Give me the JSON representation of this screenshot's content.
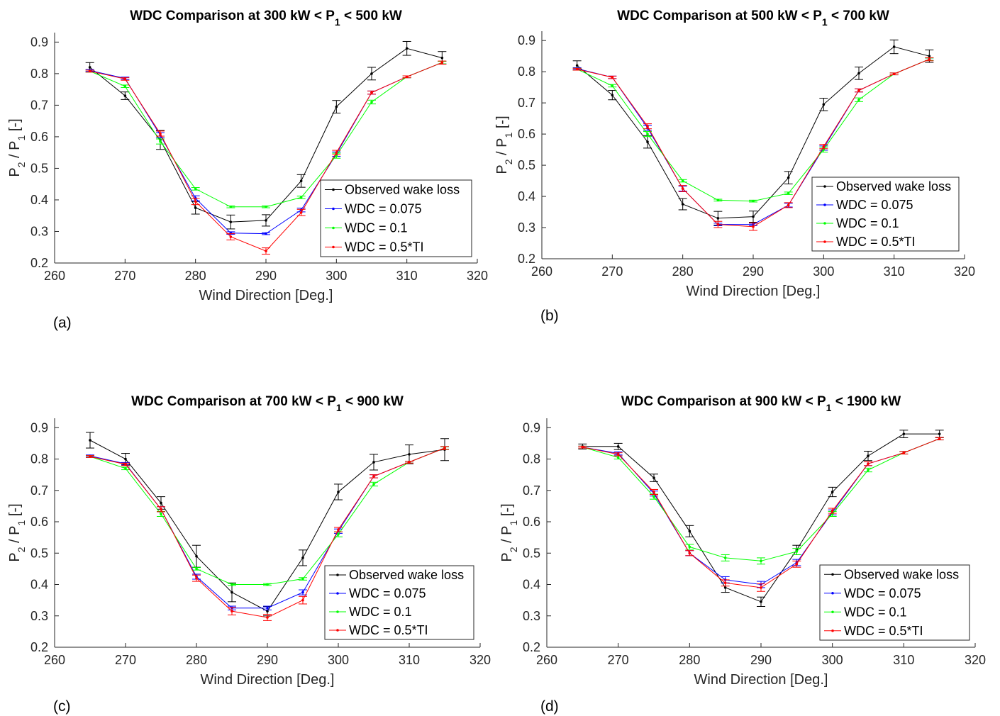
{
  "chart_data": [
    {
      "type": "line",
      "panel_label": "(a)",
      "title": "WDC Comparison at 300 kW < P₁ < 500 kW",
      "xlabel": "Wind Direction [Deg.]",
      "ylabel": "P₂ / P₁ [-]",
      "xlim": [
        260,
        320
      ],
      "ylim": [
        0.2,
        0.93
      ],
      "xticks": [
        260,
        270,
        280,
        290,
        300,
        310,
        320
      ],
      "yticks": [
        0.2,
        0.3,
        0.4,
        0.5,
        0.6,
        0.7,
        0.8,
        0.9
      ],
      "legend_position": "lower-right",
      "grid": false,
      "x": [
        265,
        270,
        275,
        280,
        285,
        290,
        295,
        300,
        305,
        310,
        315
      ],
      "series": [
        {
          "name": "Observed wake loss",
          "color": "#000000",
          "values": [
            0.82,
            0.73,
            0.59,
            0.375,
            0.33,
            0.335,
            0.46,
            0.695,
            0.8,
            0.88,
            0.85
          ],
          "err": [
            0.015,
            0.012,
            0.03,
            0.02,
            0.022,
            0.018,
            0.02,
            0.02,
            0.02,
            0.022,
            0.02
          ]
        },
        {
          "name": "WDC = 0.075",
          "color": "#0000ff",
          "values": [
            0.81,
            0.785,
            0.605,
            0.405,
            0.295,
            0.293,
            0.368,
            0.545,
            0.74,
            0.79,
            0.835
          ],
          "err": [
            0.003,
            0.004,
            0.008,
            0.008,
            0.004,
            0.003,
            0.006,
            0.007,
            0.005,
            0.003,
            0.004
          ]
        },
        {
          "name": "WDC = 0.1",
          "color": "#00ff00",
          "values": [
            0.808,
            0.76,
            0.585,
            0.435,
            0.378,
            0.378,
            0.408,
            0.54,
            0.71,
            0.79,
            0.835
          ],
          "err": [
            0.003,
            0.004,
            0.008,
            0.004,
            0.003,
            0.003,
            0.004,
            0.008,
            0.006,
            0.003,
            0.004
          ]
        },
        {
          "name": "WDC = 0.5*TI",
          "color": "#ff0000",
          "values": [
            0.808,
            0.783,
            0.61,
            0.395,
            0.283,
            0.238,
            0.36,
            0.55,
            0.74,
            0.79,
            0.835
          ],
          "err": [
            0.003,
            0.004,
            0.008,
            0.01,
            0.01,
            0.01,
            0.01,
            0.007,
            0.005,
            0.003,
            0.005
          ]
        }
      ]
    },
    {
      "type": "line",
      "panel_label": "(b)",
      "title": "WDC Comparison at 500 kW < P₁ < 700 kW",
      "xlabel": "Wind Direction [Deg.]",
      "ylabel": "P₂ / P₁ [-]",
      "xlim": [
        260,
        320
      ],
      "ylim": [
        0.2,
        0.93
      ],
      "xticks": [
        260,
        270,
        280,
        290,
        300,
        310,
        320
      ],
      "yticks": [
        0.2,
        0.3,
        0.4,
        0.5,
        0.6,
        0.7,
        0.8,
        0.9
      ],
      "legend_position": "lower-right",
      "grid": false,
      "x": [
        265,
        270,
        275,
        280,
        285,
        290,
        295,
        300,
        305,
        310,
        315
      ],
      "series": [
        {
          "name": "Observed wake loss",
          "color": "#000000",
          "values": [
            0.82,
            0.725,
            0.575,
            0.375,
            0.33,
            0.335,
            0.46,
            0.695,
            0.795,
            0.88,
            0.85
          ],
          "err": [
            0.015,
            0.015,
            0.02,
            0.018,
            0.022,
            0.018,
            0.02,
            0.02,
            0.02,
            0.022,
            0.02
          ]
        },
        {
          "name": "WDC = 0.075",
          "color": "#0000ff",
          "values": [
            0.81,
            0.782,
            0.62,
            0.425,
            0.31,
            0.31,
            0.372,
            0.555,
            0.74,
            0.793,
            0.84
          ],
          "err": [
            0.003,
            0.004,
            0.008,
            0.008,
            0.004,
            0.004,
            0.006,
            0.007,
            0.005,
            0.003,
            0.004
          ]
        },
        {
          "name": "WDC = 0.1",
          "color": "#00ff00",
          "values": [
            0.808,
            0.755,
            0.6,
            0.45,
            0.388,
            0.385,
            0.41,
            0.55,
            0.71,
            0.793,
            0.84
          ],
          "err": [
            0.003,
            0.004,
            0.008,
            0.004,
            0.003,
            0.003,
            0.004,
            0.008,
            0.006,
            0.003,
            0.004
          ]
        },
        {
          "name": "WDC = 0.5*TI",
          "color": "#ff0000",
          "values": [
            0.808,
            0.782,
            0.625,
            0.425,
            0.31,
            0.303,
            0.372,
            0.56,
            0.74,
            0.793,
            0.84
          ],
          "err": [
            0.003,
            0.004,
            0.008,
            0.01,
            0.01,
            0.012,
            0.008,
            0.007,
            0.005,
            0.003,
            0.005
          ]
        }
      ]
    },
    {
      "type": "line",
      "panel_label": "(c)",
      "title": "WDC Comparison at 700 kW < P₁ < 900 kW",
      "xlabel": "Wind Direction [Deg.]",
      "ylabel": "P₂ / P₁ [-]",
      "xlim": [
        260,
        320
      ],
      "ylim": [
        0.2,
        0.93
      ],
      "xticks": [
        260,
        270,
        280,
        290,
        300,
        310,
        320
      ],
      "yticks": [
        0.2,
        0.3,
        0.4,
        0.5,
        0.6,
        0.7,
        0.8,
        0.9
      ],
      "legend_position": "lower-right",
      "grid": false,
      "x": [
        265,
        270,
        275,
        280,
        285,
        290,
        295,
        300,
        305,
        310,
        315
      ],
      "series": [
        {
          "name": "Observed wake loss",
          "color": "#000000",
          "values": [
            0.86,
            0.8,
            0.66,
            0.49,
            0.375,
            0.315,
            0.485,
            0.695,
            0.79,
            0.815,
            0.83
          ],
          "err": [
            0.025,
            0.018,
            0.02,
            0.035,
            0.03,
            0.015,
            0.025,
            0.025,
            0.025,
            0.03,
            0.035
          ]
        },
        {
          "name": "WDC = 0.075",
          "color": "#0000ff",
          "values": [
            0.81,
            0.785,
            0.64,
            0.425,
            0.325,
            0.325,
            0.375,
            0.57,
            0.745,
            0.79,
            0.835
          ],
          "err": [
            0.003,
            0.004,
            0.008,
            0.008,
            0.006,
            0.006,
            0.008,
            0.007,
            0.005,
            0.003,
            0.004
          ]
        },
        {
          "name": "WDC = 0.1",
          "color": "#00ff00",
          "values": [
            0.808,
            0.77,
            0.625,
            0.45,
            0.4,
            0.4,
            0.418,
            0.56,
            0.72,
            0.79,
            0.835
          ],
          "err": [
            0.003,
            0.004,
            0.008,
            0.004,
            0.003,
            0.003,
            0.004,
            0.008,
            0.006,
            0.003,
            0.004
          ]
        },
        {
          "name": "WDC = 0.5*TI",
          "color": "#ff0000",
          "values": [
            0.808,
            0.783,
            0.64,
            0.42,
            0.315,
            0.295,
            0.35,
            0.575,
            0.745,
            0.79,
            0.835
          ],
          "err": [
            0.003,
            0.004,
            0.008,
            0.01,
            0.012,
            0.01,
            0.012,
            0.007,
            0.005,
            0.003,
            0.005
          ]
        }
      ]
    },
    {
      "type": "line",
      "panel_label": "(d)",
      "title": "WDC Comparison at 900 kW < P₁ < 1900 kW",
      "xlabel": "Wind Direction [Deg.]",
      "ylabel": "P₂ / P₁ [-]",
      "xlim": [
        260,
        320
      ],
      "ylim": [
        0.2,
        0.93
      ],
      "xticks": [
        260,
        270,
        280,
        290,
        300,
        310,
        320
      ],
      "yticks": [
        0.2,
        0.3,
        0.4,
        0.5,
        0.6,
        0.7,
        0.8,
        0.9
      ],
      "legend_position": "lower-right",
      "grid": false,
      "x": [
        265,
        270,
        275,
        280,
        285,
        290,
        295,
        300,
        305,
        310,
        315
      ],
      "series": [
        {
          "name": "Observed wake loss",
          "color": "#000000",
          "values": [
            0.84,
            0.84,
            0.74,
            0.57,
            0.39,
            0.345,
            0.51,
            0.695,
            0.81,
            0.88,
            0.88
          ],
          "err": [
            0.008,
            0.01,
            0.012,
            0.018,
            0.015,
            0.015,
            0.015,
            0.015,
            0.015,
            0.012,
            0.012
          ]
        },
        {
          "name": "WDC = 0.075",
          "color": "#0000ff",
          "values": [
            0.838,
            0.818,
            0.69,
            0.5,
            0.415,
            0.4,
            0.47,
            0.63,
            0.785,
            0.82,
            0.865
          ],
          "err": [
            0.003,
            0.005,
            0.008,
            0.008,
            0.01,
            0.01,
            0.01,
            0.008,
            0.006,
            0.004,
            0.004
          ]
        },
        {
          "name": "WDC = 0.1",
          "color": "#00ff00",
          "values": [
            0.838,
            0.805,
            0.68,
            0.52,
            0.485,
            0.475,
            0.505,
            0.625,
            0.765,
            0.82,
            0.865
          ],
          "err": [
            0.003,
            0.005,
            0.008,
            0.008,
            0.01,
            0.01,
            0.01,
            0.008,
            0.006,
            0.004,
            0.004
          ]
        },
        {
          "name": "WDC = 0.5*TI",
          "color": "#ff0000",
          "values": [
            0.838,
            0.815,
            0.695,
            0.5,
            0.405,
            0.39,
            0.465,
            0.635,
            0.785,
            0.82,
            0.865
          ],
          "err": [
            0.003,
            0.005,
            0.008,
            0.008,
            0.01,
            0.012,
            0.01,
            0.008,
            0.006,
            0.004,
            0.004
          ]
        }
      ]
    }
  ]
}
